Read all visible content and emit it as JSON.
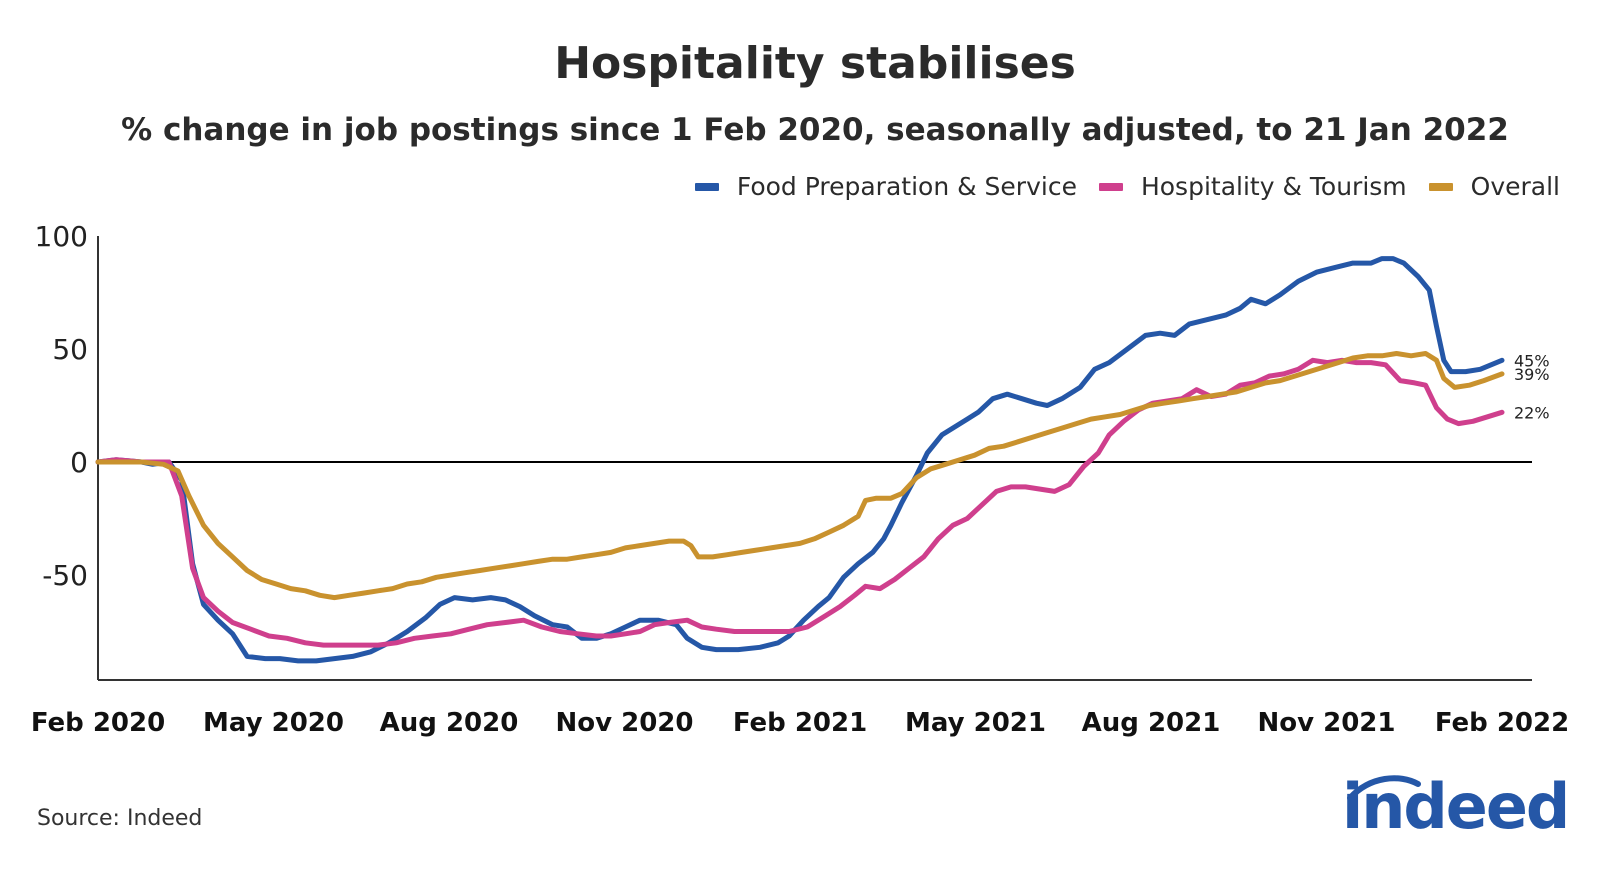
{
  "chart_data": {
    "type": "line",
    "title": "Hospitality stabilises",
    "subtitle": "% change in job postings since 1 Feb 2020, seasonally adjusted, to 21 Jan 2022",
    "xlabel": "",
    "ylabel": "",
    "x_ticks": [
      "Feb 2020",
      "May 2020",
      "Aug 2020",
      "Nov 2020",
      "Feb 2021",
      "May 2021",
      "Aug 2021",
      "Nov 2021",
      "Feb 2022"
    ],
    "y_ticks": [
      100,
      50,
      0,
      -50
    ],
    "ylim": [
      -97,
      100
    ],
    "x_range_months": [
      0,
      24
    ],
    "legend_position": "top-right",
    "series": [
      {
        "name": "Food Preparation & Service",
        "color": "#2557a7",
        "end_label": "45%",
        "points": [
          [
            0,
            0
          ],
          [
            0.5,
            1
          ],
          [
            1.2,
            0
          ],
          [
            1.5,
            -1
          ],
          [
            1.95,
            0
          ],
          [
            2.3,
            -8
          ],
          [
            2.6,
            -45
          ],
          [
            2.9,
            -63
          ],
          [
            3.3,
            -70
          ],
          [
            3.7,
            -76
          ],
          [
            4.1,
            -86
          ],
          [
            4.6,
            -87
          ],
          [
            5,
            -87
          ],
          [
            5.5,
            -88
          ],
          [
            6,
            -88
          ],
          [
            6.5,
            -87
          ],
          [
            7,
            -86
          ],
          [
            7.5,
            -84
          ],
          [
            8,
            -80
          ],
          [
            8.5,
            -75
          ],
          [
            9,
            -69
          ],
          [
            9.4,
            -63
          ],
          [
            9.8,
            -60
          ],
          [
            10.3,
            -61
          ],
          [
            10.8,
            -60
          ],
          [
            11.2,
            -61
          ],
          [
            11.6,
            -64
          ],
          [
            12,
            -68
          ],
          [
            12.5,
            -72
          ],
          [
            12.9,
            -73
          ],
          [
            13.3,
            -78
          ],
          [
            13.7,
            -78
          ],
          [
            14.1,
            -76
          ],
          [
            14.5,
            -73
          ],
          [
            14.9,
            -70
          ],
          [
            15.4,
            -70
          ],
          [
            15.9,
            -72
          ],
          [
            16.2,
            -78
          ],
          [
            16.6,
            -82
          ],
          [
            17,
            -83
          ],
          [
            17.6,
            -83
          ],
          [
            18.2,
            -82
          ],
          [
            18.7,
            -80
          ],
          [
            19,
            -77
          ],
          [
            19.4,
            -70
          ],
          [
            19.8,
            -64
          ],
          [
            20.1,
            -60
          ],
          [
            20.5,
            -51
          ],
          [
            20.9,
            -45
          ],
          [
            21.3,
            -40
          ],
          [
            21.6,
            -34
          ],
          [
            21.8,
            -28
          ],
          [
            22.1,
            -18
          ],
          [
            22.5,
            -6
          ],
          [
            22.8,
            4
          ],
          [
            23.2,
            12
          ],
          [
            23.5,
            15
          ],
          [
            23.9,
            19
          ],
          [
            24.2,
            22
          ],
          [
            24.6,
            28
          ],
          [
            25,
            30
          ],
          [
            25.4,
            28
          ],
          [
            25.8,
            26
          ],
          [
            26.1,
            25
          ],
          [
            26.5,
            28
          ],
          [
            27,
            33
          ],
          [
            27.4,
            41
          ],
          [
            27.8,
            44
          ],
          [
            28.3,
            50
          ],
          [
            28.8,
            56
          ],
          [
            29.2,
            57
          ],
          [
            29.6,
            56
          ],
          [
            30,
            61
          ],
          [
            30.5,
            63
          ],
          [
            31,
            65
          ],
          [
            31.4,
            68
          ],
          [
            31.7,
            72
          ],
          [
            32.1,
            70
          ],
          [
            32.5,
            74
          ],
          [
            33,
            80
          ],
          [
            33.5,
            84
          ],
          [
            34,
            86
          ],
          [
            34.5,
            88
          ],
          [
            35,
            88
          ],
          [
            35.3,
            90
          ],
          [
            35.6,
            90
          ],
          [
            35.9,
            88
          ],
          [
            36.3,
            82
          ],
          [
            36.6,
            76
          ],
          [
            36.8,
            60
          ],
          [
            37,
            45
          ],
          [
            37.2,
            40
          ],
          [
            37.6,
            40
          ],
          [
            38,
            41
          ],
          [
            38.3,
            43
          ],
          [
            38.6,
            45
          ]
        ]
      },
      {
        "name": "Hospitality & Tourism",
        "color": "#cf3f8d",
        "end_label": "22%",
        "points": [
          [
            0,
            0
          ],
          [
            0.5,
            1
          ],
          [
            1.2,
            0
          ],
          [
            1.6,
            0
          ],
          [
            1.95,
            0
          ],
          [
            2.3,
            -15
          ],
          [
            2.6,
            -47
          ],
          [
            2.9,
            -60
          ],
          [
            3.3,
            -66
          ],
          [
            3.7,
            -71
          ],
          [
            4.2,
            -74
          ],
          [
            4.7,
            -77
          ],
          [
            5.2,
            -78
          ],
          [
            5.7,
            -80
          ],
          [
            6.2,
            -81
          ],
          [
            6.7,
            -81
          ],
          [
            7.2,
            -81
          ],
          [
            7.7,
            -81
          ],
          [
            8.2,
            -80
          ],
          [
            8.7,
            -78
          ],
          [
            9.2,
            -77
          ],
          [
            9.7,
            -76
          ],
          [
            10.2,
            -74
          ],
          [
            10.7,
            -72
          ],
          [
            11.2,
            -71
          ],
          [
            11.7,
            -70
          ],
          [
            12.2,
            -73
          ],
          [
            12.7,
            -75
          ],
          [
            13.2,
            -76
          ],
          [
            13.7,
            -77
          ],
          [
            14.1,
            -77
          ],
          [
            14.5,
            -76
          ],
          [
            14.9,
            -75
          ],
          [
            15.3,
            -72
          ],
          [
            15.7,
            -71
          ],
          [
            16.2,
            -70
          ],
          [
            16.6,
            -73
          ],
          [
            17,
            -74
          ],
          [
            17.5,
            -75
          ],
          [
            18,
            -75
          ],
          [
            18.5,
            -75
          ],
          [
            19,
            -75
          ],
          [
            19.5,
            -73
          ],
          [
            20,
            -68
          ],
          [
            20.4,
            -64
          ],
          [
            20.8,
            -59
          ],
          [
            21.1,
            -55
          ],
          [
            21.5,
            -56
          ],
          [
            21.9,
            -52
          ],
          [
            22.3,
            -47
          ],
          [
            22.7,
            -42
          ],
          [
            23.1,
            -34
          ],
          [
            23.5,
            -28
          ],
          [
            23.9,
            -25
          ],
          [
            24.3,
            -19
          ],
          [
            24.7,
            -13
          ],
          [
            25.1,
            -11
          ],
          [
            25.5,
            -11
          ],
          [
            25.9,
            -12
          ],
          [
            26.3,
            -13
          ],
          [
            26.7,
            -10
          ],
          [
            27.1,
            -2
          ],
          [
            27.5,
            4
          ],
          [
            27.8,
            12
          ],
          [
            28.2,
            18
          ],
          [
            28.6,
            23
          ],
          [
            29,
            26
          ],
          [
            29.4,
            27
          ],
          [
            29.8,
            28
          ],
          [
            30.2,
            32
          ],
          [
            30.6,
            29
          ],
          [
            31,
            30
          ],
          [
            31.4,
            34
          ],
          [
            31.8,
            35
          ],
          [
            32.2,
            38
          ],
          [
            32.6,
            39
          ],
          [
            33,
            41
          ],
          [
            33.4,
            45
          ],
          [
            33.8,
            44
          ],
          [
            34.2,
            45
          ],
          [
            34.6,
            44
          ],
          [
            35,
            44
          ],
          [
            35.4,
            43
          ],
          [
            35.8,
            36
          ],
          [
            36.2,
            35
          ],
          [
            36.5,
            34
          ],
          [
            36.8,
            24
          ],
          [
            37.1,
            19
          ],
          [
            37.4,
            17
          ],
          [
            37.8,
            18
          ],
          [
            38.2,
            20
          ],
          [
            38.6,
            22
          ]
        ]
      },
      {
        "name": "Overall",
        "color": "#c9922e",
        "end_label": "39%",
        "points": [
          [
            0,
            0
          ],
          [
            0.6,
            0
          ],
          [
            1.2,
            0
          ],
          [
            1.8,
            -1
          ],
          [
            2.2,
            -4
          ],
          [
            2.5,
            -15
          ],
          [
            2.9,
            -28
          ],
          [
            3.3,
            -36
          ],
          [
            3.7,
            -42
          ],
          [
            4.1,
            -48
          ],
          [
            4.5,
            -52
          ],
          [
            4.9,
            -54
          ],
          [
            5.3,
            -56
          ],
          [
            5.7,
            -57
          ],
          [
            6.1,
            -59
          ],
          [
            6.5,
            -60
          ],
          [
            6.9,
            -59
          ],
          [
            7.3,
            -58
          ],
          [
            7.7,
            -57
          ],
          [
            8.1,
            -56
          ],
          [
            8.5,
            -54
          ],
          [
            8.9,
            -53
          ],
          [
            9.3,
            -51
          ],
          [
            9.7,
            -50
          ],
          [
            10.1,
            -49
          ],
          [
            10.5,
            -48
          ],
          [
            10.9,
            -47
          ],
          [
            11.3,
            -46
          ],
          [
            11.7,
            -45
          ],
          [
            12.1,
            -44
          ],
          [
            12.5,
            -43
          ],
          [
            12.9,
            -43
          ],
          [
            13.3,
            -42
          ],
          [
            13.7,
            -41
          ],
          [
            14.1,
            -40
          ],
          [
            14.5,
            -38
          ],
          [
            14.9,
            -37
          ],
          [
            15.3,
            -36
          ],
          [
            15.7,
            -35
          ],
          [
            16.1,
            -35
          ],
          [
            16.3,
            -37
          ],
          [
            16.5,
            -42
          ],
          [
            16.9,
            -42
          ],
          [
            17.3,
            -41
          ],
          [
            17.7,
            -40
          ],
          [
            18.1,
            -39
          ],
          [
            18.5,
            -38
          ],
          [
            18.9,
            -37
          ],
          [
            19.3,
            -36
          ],
          [
            19.7,
            -34
          ],
          [
            20.1,
            -31
          ],
          [
            20.5,
            -28
          ],
          [
            20.9,
            -24
          ],
          [
            21.1,
            -17
          ],
          [
            21.4,
            -16
          ],
          [
            21.8,
            -16
          ],
          [
            22.1,
            -14
          ],
          [
            22.5,
            -7
          ],
          [
            22.9,
            -3
          ],
          [
            23.3,
            -1
          ],
          [
            23.7,
            1
          ],
          [
            24.1,
            3
          ],
          [
            24.5,
            6
          ],
          [
            24.9,
            7
          ],
          [
            25.3,
            9
          ],
          [
            25.7,
            11
          ],
          [
            26.1,
            13
          ],
          [
            26.5,
            15
          ],
          [
            26.9,
            17
          ],
          [
            27.3,
            19
          ],
          [
            27.7,
            20
          ],
          [
            28.1,
            21
          ],
          [
            28.5,
            23
          ],
          [
            28.9,
            25
          ],
          [
            29.3,
            26
          ],
          [
            29.7,
            27
          ],
          [
            30.1,
            28
          ],
          [
            30.5,
            29
          ],
          [
            30.9,
            30
          ],
          [
            31.3,
            31
          ],
          [
            31.7,
            33
          ],
          [
            32.1,
            35
          ],
          [
            32.5,
            36
          ],
          [
            32.9,
            38
          ],
          [
            33.3,
            40
          ],
          [
            33.7,
            42
          ],
          [
            34.1,
            44
          ],
          [
            34.5,
            46
          ],
          [
            34.9,
            47
          ],
          [
            35.3,
            47
          ],
          [
            35.7,
            48
          ],
          [
            36.1,
            47
          ],
          [
            36.5,
            48
          ],
          [
            36.8,
            45
          ],
          [
            37,
            37
          ],
          [
            37.3,
            33
          ],
          [
            37.7,
            34
          ],
          [
            38.1,
            36
          ],
          [
            38.6,
            39
          ]
        ]
      }
    ]
  },
  "source": "Source: Indeed",
  "logo_text": "indeed"
}
